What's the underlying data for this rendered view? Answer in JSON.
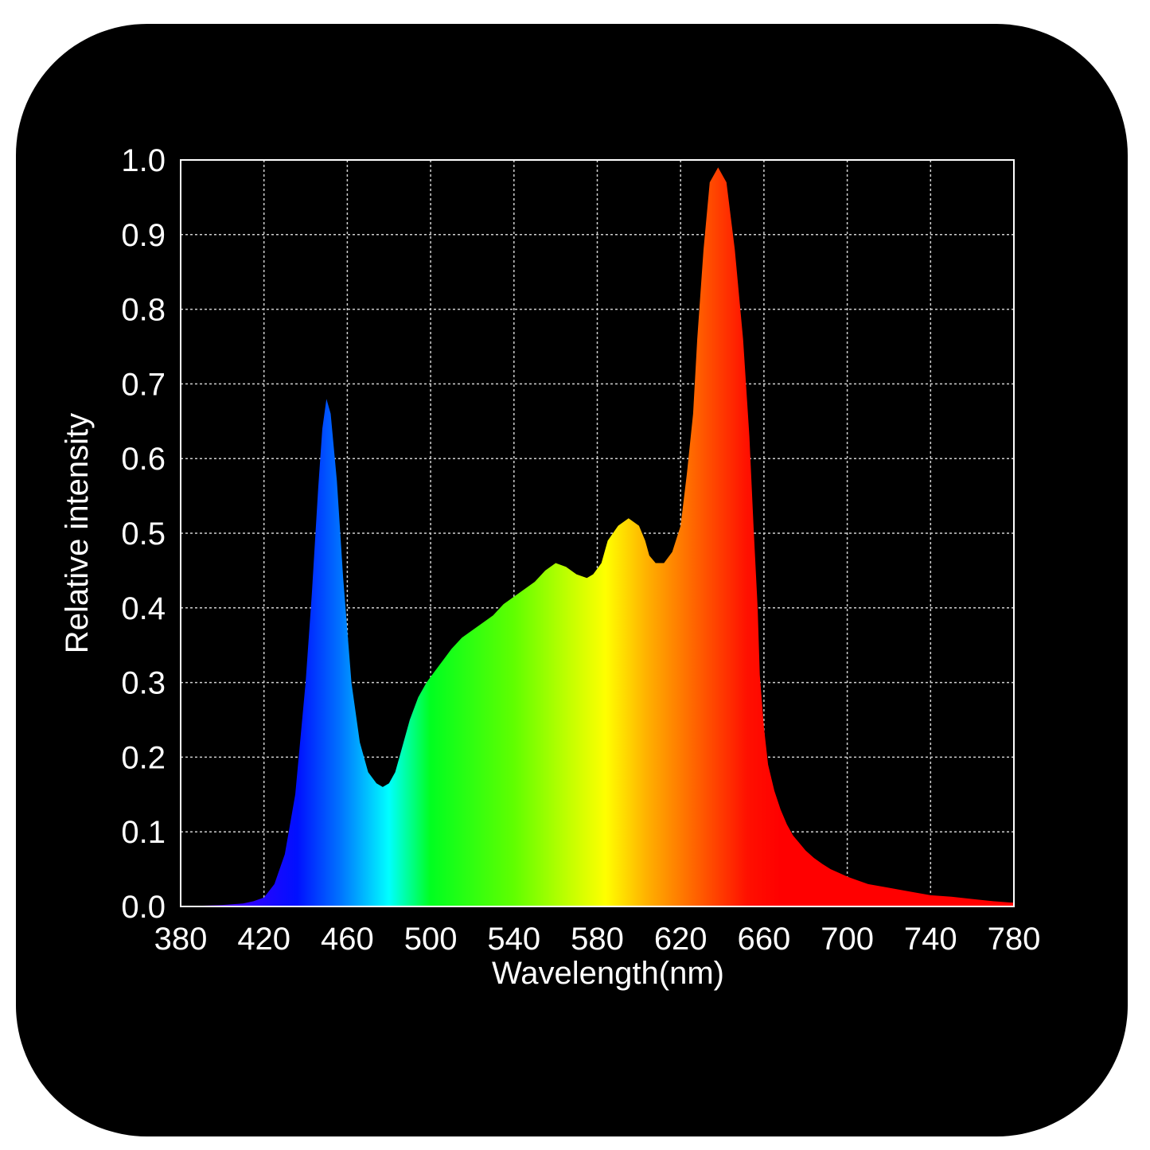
{
  "chart_data": {
    "type": "area",
    "title": "",
    "xlabel": "Wavelength(nm)",
    "ylabel": "Relative intensity",
    "xlim": [
      380,
      780
    ],
    "ylim": [
      0,
      1.0
    ],
    "grid": true,
    "x_ticks": [
      "380",
      "420",
      "460",
      "500",
      "540",
      "580",
      "620",
      "660",
      "700",
      "740",
      "780"
    ],
    "y_ticks": [
      "0.0",
      "0.1",
      "0.2",
      "0.3",
      "0.4",
      "0.5",
      "0.6",
      "0.7",
      "0.8",
      "0.9",
      "1.0"
    ],
    "fill": "visible-spectrum gradient",
    "series": [
      {
        "x": [
          380,
          400,
          410,
          415,
          420,
          425,
          430,
          435,
          440,
          443,
          446,
          448,
          450,
          452,
          455,
          458,
          462,
          466,
          470,
          474,
          477,
          480,
          483,
          486,
          490,
          494,
          498,
          502,
          506,
          510,
          515,
          520,
          525,
          530,
          535,
          540,
          545,
          550,
          555,
          560,
          565,
          570,
          575,
          578,
          582,
          585,
          590,
          595,
          600,
          603,
          605,
          608,
          612,
          616,
          620,
          623,
          626,
          628,
          631,
          634,
          638,
          642,
          646,
          650,
          653,
          655,
          657,
          658,
          660,
          662,
          665,
          668,
          671,
          674,
          677,
          680,
          684,
          688,
          692,
          696,
          700,
          705,
          710,
          720,
          730,
          740,
          750,
          760,
          770,
          780
        ],
        "y": [
          0.0,
          0.002,
          0.004,
          0.007,
          0.012,
          0.03,
          0.07,
          0.15,
          0.3,
          0.42,
          0.56,
          0.64,
          0.68,
          0.66,
          0.57,
          0.44,
          0.3,
          0.22,
          0.18,
          0.165,
          0.16,
          0.165,
          0.18,
          0.21,
          0.25,
          0.28,
          0.3,
          0.315,
          0.33,
          0.345,
          0.36,
          0.37,
          0.38,
          0.39,
          0.405,
          0.415,
          0.425,
          0.435,
          0.45,
          0.46,
          0.455,
          0.445,
          0.44,
          0.445,
          0.46,
          0.49,
          0.51,
          0.52,
          0.51,
          0.49,
          0.47,
          0.46,
          0.46,
          0.475,
          0.51,
          0.58,
          0.66,
          0.76,
          0.88,
          0.97,
          0.99,
          0.97,
          0.88,
          0.76,
          0.63,
          0.51,
          0.4,
          0.31,
          0.24,
          0.19,
          0.155,
          0.13,
          0.11,
          0.095,
          0.085,
          0.075,
          0.065,
          0.057,
          0.05,
          0.045,
          0.04,
          0.035,
          0.03,
          0.025,
          0.02,
          0.015,
          0.013,
          0.01,
          0.007,
          0.005
        ]
      }
    ]
  }
}
